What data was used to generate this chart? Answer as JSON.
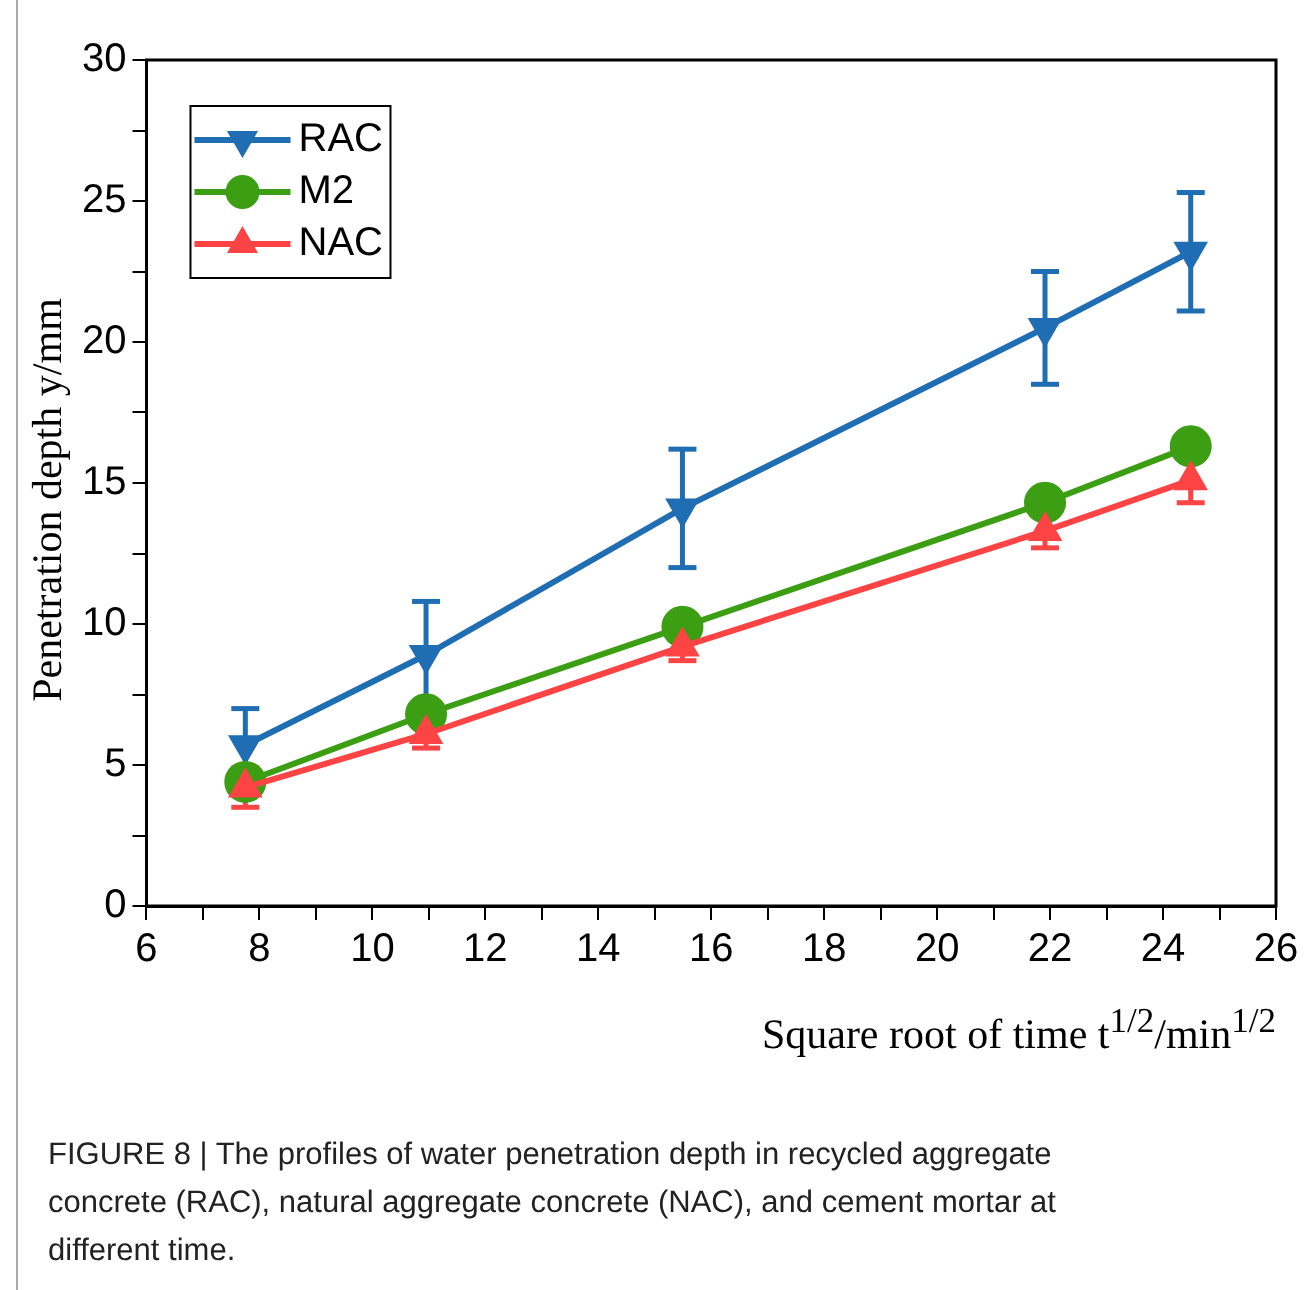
{
  "chart_data": {
    "type": "line",
    "xlabel": "Square root of time t$^{1/2}$/min$^{1/2}$",
    "ylabel": "Penetration depth y/mm",
    "x": [
      7.75,
      10.95,
      15.49,
      21.91,
      24.49
    ],
    "series": [
      {
        "name": "RAC",
        "color": "#1f6db3",
        "marker": "triangle-down",
        "values": [
          5.7,
          8.9,
          14.1,
          20.5,
          23.2
        ],
        "errors": [
          1.3,
          1.9,
          2.1,
          2.0,
          2.1
        ]
      },
      {
        "name": "M2",
        "color": "#3c9e12",
        "marker": "circle",
        "values": [
          4.4,
          6.8,
          9.9,
          14.3,
          16.3
        ]
      },
      {
        "name": "NAC",
        "color": "#fc4444",
        "marker": "triangle",
        "values": [
          4.2,
          6.1,
          9.2,
          13.3,
          15.1
        ],
        "errors": [
          0.7,
          0.5,
          0.5,
          0.6,
          0.8
        ]
      }
    ],
    "xlim": [
      6,
      26
    ],
    "xticks": [
      6,
      {
        "value": 7,
        "label": null
      },
      8,
      {
        "value": 9,
        "label": null
      },
      10,
      {
        "value": 11,
        "label": null
      },
      12,
      {
        "value": 13,
        "label": null
      },
      14,
      {
        "value": 15,
        "label": null
      },
      16,
      {
        "value": 17,
        "label": null
      },
      18,
      {
        "value": 19,
        "label": null
      },
      20,
      {
        "value": 21,
        "label": null
      },
      22,
      {
        "value": 23,
        "label": null
      },
      24,
      {
        "value": 25,
        "label": null
      },
      26
    ],
    "ylim": [
      0,
      30
    ],
    "yticks": [
      0,
      {
        "value": 2.5,
        "label": null
      },
      5,
      {
        "value": 7.5,
        "label": null
      },
      10,
      {
        "value": 12.5,
        "label": null
      },
      15,
      {
        "value": 17.5,
        "label": null
      },
      20,
      {
        "value": 22.5,
        "label": null
      },
      25,
      {
        "value": 27.5,
        "label": null
      },
      30
    ],
    "legend": "top left",
    "grid": false,
    "line_style": "solid",
    "annotations": [
      "FIGURE 8 | The profiles of water penetration depth in recycled aggregate concrete (RAC), natural aggregate concrete (NAC), and cement mortar at different time."
    ]
  }
}
